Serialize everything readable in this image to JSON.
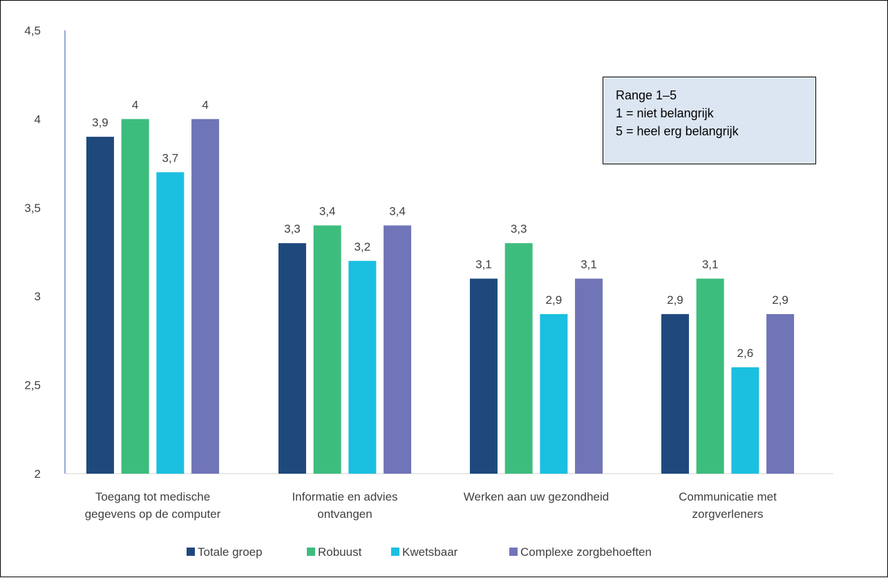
{
  "chart_data": {
    "type": "bar",
    "title": "",
    "xlabel": "",
    "ylabel": "",
    "ylim": [
      2,
      4.5
    ],
    "yticks": [
      "2",
      "2,5",
      "3",
      "3,5",
      "4",
      "4,5"
    ],
    "yticks_values": [
      2,
      2.5,
      3,
      3.5,
      4,
      4.5
    ],
    "grid": false,
    "legend_position": "bottom",
    "categories": [
      [
        "Toegang tot medische",
        "gegevens op de computer"
      ],
      [
        "Informatie en advies",
        "ontvangen"
      ],
      [
        "Werken aan uw gezondheid"
      ],
      [
        "Communicatie met",
        "zorgverleners"
      ]
    ],
    "series": [
      {
        "name": "Totale groep",
        "color": "#1f497d",
        "values": [
          3.9,
          3.3,
          3.1,
          2.9
        ],
        "labels": [
          "3,9",
          "3,3",
          "3,1",
          "2,9"
        ]
      },
      {
        "name": "Robuust",
        "color": "#3dbd7d",
        "values": [
          4.0,
          3.4,
          3.3,
          3.1
        ],
        "labels": [
          "4",
          "3,4",
          "3,3",
          "3,1"
        ]
      },
      {
        "name": "Kwetsbaar",
        "color": "#1bbfe0",
        "values": [
          3.7,
          3.2,
          2.9,
          2.6
        ],
        "labels": [
          "3,7",
          "3,2",
          "2,9",
          "2,6"
        ]
      },
      {
        "name": "Complexe zorgbehoeften",
        "color": "#7075b8",
        "values": [
          4.0,
          3.4,
          3.1,
          2.9
        ],
        "labels": [
          "4",
          "3,4",
          "3,1",
          "2,9"
        ]
      }
    ],
    "annotation": {
      "lines": [
        "Range 1–5",
        "1 = niet belangrijk",
        "5 = heel erg belangrijk"
      ]
    }
  }
}
